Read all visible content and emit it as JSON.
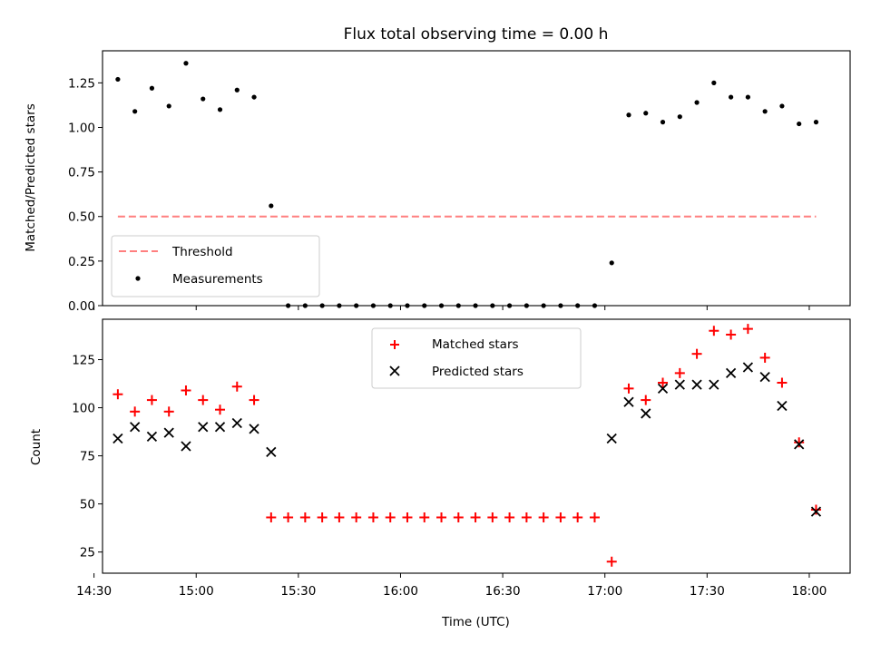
{
  "chart_data": [
    {
      "type": "scatter",
      "title": "Flux total observing time = 0.00 h",
      "ylabel": "Matched/Predicted stars",
      "ylim": [
        0,
        1.43
      ],
      "yticks": [
        "0.00",
        "0.25",
        "0.50",
        "0.75",
        "1.00",
        "1.25"
      ],
      "xlim_minutes": [
        872.5,
        1092
      ],
      "threshold": {
        "name": "Threshold",
        "value": 0.5,
        "x_range": [
          "14:37",
          "18:02"
        ],
        "color": "#ff7f7f",
        "style": "dashed"
      },
      "series": [
        {
          "name": "Measurements",
          "color": "#000000",
          "marker": "dot",
          "x": [
            "14:37",
            "14:42",
            "14:47",
            "14:52",
            "14:57",
            "15:02",
            "15:07",
            "15:12",
            "15:17",
            "15:22",
            "15:27",
            "15:32",
            "15:37",
            "15:42",
            "15:47",
            "15:52",
            "15:57",
            "16:02",
            "16:07",
            "16:12",
            "16:17",
            "16:22",
            "16:27",
            "16:32",
            "16:37",
            "16:42",
            "16:47",
            "16:52",
            "16:57",
            "17:02",
            "17:07",
            "17:12",
            "17:17",
            "17:22",
            "17:27",
            "17:32",
            "17:37",
            "17:42",
            "17:47",
            "17:52",
            "17:57",
            "18:02"
          ],
          "y": [
            1.27,
            1.09,
            1.22,
            1.12,
            1.36,
            1.16,
            1.1,
            1.21,
            1.17,
            0.56,
            0,
            0,
            0,
            0,
            0,
            0,
            0,
            0,
            0,
            0,
            0,
            0,
            0,
            0,
            0,
            0,
            0,
            0,
            0,
            0.24,
            1.07,
            1.08,
            1.03,
            1.06,
            1.14,
            1.25,
            1.17,
            1.17,
            1.09,
            1.12,
            1.02,
            1.03
          ]
        }
      ],
      "legend": "lower-left"
    },
    {
      "type": "scatter",
      "title": "",
      "xlabel": "Time (UTC)",
      "ylabel": "Count",
      "ylim": [
        14,
        146
      ],
      "yticks": [
        "25",
        "50",
        "75",
        "100",
        "125"
      ],
      "xticks": [
        "14:30",
        "15:00",
        "15:30",
        "16:00",
        "16:30",
        "17:00",
        "17:30",
        "18:00"
      ],
      "xlim_minutes": [
        872.5,
        1092
      ],
      "series": [
        {
          "name": "Matched stars",
          "color": "#ff0000",
          "marker": "plus",
          "x": [
            "14:37",
            "14:42",
            "14:47",
            "14:52",
            "14:57",
            "15:02",
            "15:07",
            "15:12",
            "15:17",
            "15:22",
            "15:27",
            "15:32",
            "15:37",
            "15:42",
            "15:47",
            "15:52",
            "15:57",
            "16:02",
            "16:07",
            "16:12",
            "16:17",
            "16:22",
            "16:27",
            "16:32",
            "16:37",
            "16:42",
            "16:47",
            "16:52",
            "16:57",
            "17:02",
            "17:07",
            "17:12",
            "17:17",
            "17:22",
            "17:27",
            "17:32",
            "17:37",
            "17:42",
            "17:47",
            "17:52",
            "17:57",
            "18:02"
          ],
          "y": [
            107,
            98,
            104,
            98,
            109,
            104,
            99,
            111,
            104,
            43,
            43,
            43,
            43,
            43,
            43,
            43,
            43,
            43,
            43,
            43,
            43,
            43,
            43,
            43,
            43,
            43,
            43,
            43,
            43,
            20,
            110,
            104,
            113,
            118,
            128,
            140,
            138,
            141,
            126,
            113,
            82,
            47
          ]
        },
        {
          "name": "Predicted stars",
          "color": "#000000",
          "marker": "x",
          "x": [
            "14:37",
            "14:42",
            "14:47",
            "14:52",
            "14:57",
            "15:02",
            "15:07",
            "15:12",
            "15:17",
            "15:22",
            "17:02",
            "17:07",
            "17:12",
            "17:17",
            "17:22",
            "17:27",
            "17:32",
            "17:37",
            "17:42",
            "17:47",
            "17:52",
            "17:57",
            "18:02"
          ],
          "y": [
            84,
            90,
            85,
            87,
            80,
            90,
            90,
            92,
            89,
            77,
            84,
            103,
            97,
            110,
            112,
            112,
            112,
            118,
            121,
            116,
            101,
            81,
            46
          ]
        }
      ],
      "legend": "top-center"
    }
  ]
}
